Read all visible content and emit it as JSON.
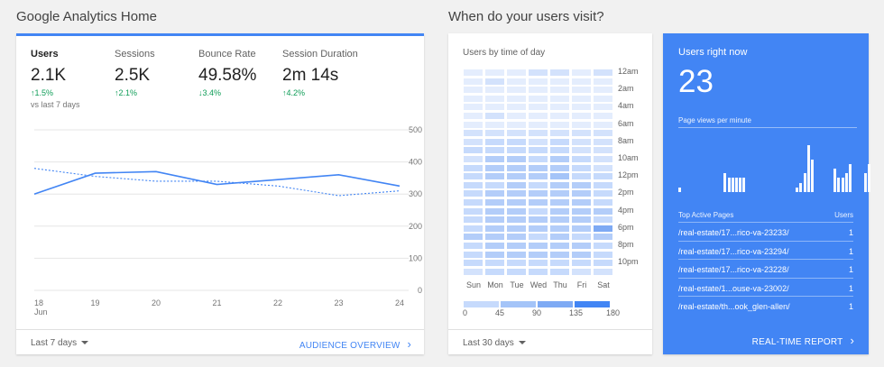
{
  "sections": {
    "overview_title": "Google Analytics Home",
    "visits_title": "When do your users visit?"
  },
  "overview": {
    "metrics": [
      {
        "label": "Users",
        "value": "2.1K",
        "change": "1.5%",
        "direction": "up",
        "sub": "vs last 7 days"
      },
      {
        "label": "Sessions",
        "value": "2.5K",
        "change": "2.1%",
        "direction": "up"
      },
      {
        "label": "Bounce Rate",
        "value": "49.58%",
        "change": "3.4%",
        "direction": "down"
      },
      {
        "label": "Session Duration",
        "value": "2m 14s",
        "change": "4.2%",
        "direction": "up"
      }
    ],
    "footer_range": "Last 7 days",
    "footer_link": "AUDIENCE OVERVIEW"
  },
  "chart_data": {
    "type": "line",
    "x": [
      "18",
      "19",
      "20",
      "21",
      "22",
      "23",
      "24"
    ],
    "x_sublabel": "Jun",
    "y_ticks": [
      "500",
      "400",
      "300",
      "200",
      "100",
      "0"
    ],
    "ylim": [
      0,
      500
    ],
    "series": [
      {
        "values": [
          300,
          365,
          370,
          330,
          345,
          360,
          325
        ],
        "style": "solid"
      },
      {
        "values": [
          380,
          355,
          340,
          340,
          325,
          295,
          310
        ],
        "style": "dashed"
      }
    ],
    "color": "#4285f4",
    "grid": true
  },
  "heatmap": {
    "title": "Users by time of day",
    "days": [
      "Sun",
      "Mon",
      "Tue",
      "Wed",
      "Thu",
      "Fri",
      "Sat"
    ],
    "hour_labels": [
      "12am",
      "2am",
      "4am",
      "6am",
      "8am",
      "10am",
      "12pm",
      "2pm",
      "4pm",
      "6pm",
      "8pm",
      "10pm"
    ],
    "legend_labels": [
      "0",
      "45",
      "90",
      "135",
      "180"
    ],
    "legend_colors": [
      "#c6dafc",
      "#a4c4f8",
      "#7eaaf4",
      "#4285f4"
    ],
    "cell_colors": [
      "#e4edfd",
      "#d3e2fc",
      "#c6dafc",
      "#b3cdf9",
      "#a4c4f8",
      "#7eaaf4"
    ],
    "grid_levels": [
      [
        0,
        0,
        0,
        1,
        1,
        0,
        1
      ],
      [
        0,
        1,
        0,
        0,
        0,
        0,
        0
      ],
      [
        0,
        0,
        0,
        0,
        0,
        0,
        0
      ],
      [
        0,
        0,
        0,
        0,
        0,
        0,
        0
      ],
      [
        0,
        0,
        0,
        0,
        0,
        0,
        0
      ],
      [
        0,
        1,
        0,
        0,
        0,
        0,
        0
      ],
      [
        0,
        0,
        0,
        0,
        0,
        0,
        0
      ],
      [
        1,
        1,
        1,
        1,
        1,
        1,
        1
      ],
      [
        1,
        2,
        2,
        1,
        2,
        1,
        1
      ],
      [
        2,
        2,
        2,
        2,
        2,
        1,
        1
      ],
      [
        1,
        3,
        3,
        2,
        3,
        2,
        1
      ],
      [
        2,
        3,
        3,
        3,
        3,
        2,
        1
      ],
      [
        2,
        3,
        3,
        3,
        4,
        2,
        2
      ],
      [
        2,
        2,
        3,
        2,
        3,
        3,
        2
      ],
      [
        2,
        3,
        3,
        3,
        3,
        3,
        2
      ],
      [
        2,
        3,
        3,
        3,
        3,
        3,
        2
      ],
      [
        2,
        3,
        3,
        2,
        3,
        3,
        3
      ],
      [
        2,
        3,
        3,
        3,
        3,
        3,
        2
      ],
      [
        2,
        3,
        3,
        3,
        3,
        3,
        5
      ],
      [
        3,
        3,
        3,
        2,
        3,
        2,
        3
      ],
      [
        2,
        3,
        3,
        3,
        3,
        3,
        2
      ],
      [
        2,
        3,
        3,
        3,
        3,
        3,
        2
      ],
      [
        2,
        2,
        2,
        2,
        2,
        2,
        2
      ],
      [
        1,
        2,
        2,
        2,
        2,
        1,
        1
      ]
    ],
    "footer_range": "Last 30 days"
  },
  "realtime": {
    "title": "Users right now",
    "value": "23",
    "pageviews_label": "Page views per minute",
    "bars": [
      1,
      0,
      0,
      0,
      0,
      0,
      0,
      0,
      0,
      0,
      0,
      0,
      4,
      3,
      3,
      3,
      3,
      3,
      0,
      0,
      0,
      0,
      0,
      0,
      0,
      0,
      0,
      0,
      0,
      0,
      0,
      1,
      2,
      4,
      10,
      7,
      0,
      0,
      0,
      0,
      0,
      5,
      3,
      3,
      4,
      6,
      0,
      0,
      0,
      4,
      6
    ],
    "bar_max": 10,
    "table_header": {
      "pages": "Top Active Pages",
      "users": "Users"
    },
    "rows": [
      {
        "page": "/real-estate/17...rico-va-23233/",
        "users": "1"
      },
      {
        "page": "/real-estate/17...rico-va-23294/",
        "users": "1"
      },
      {
        "page": "/real-estate/17...rico-va-23228/",
        "users": "1"
      },
      {
        "page": "/real-estate/1...ouse-va-23002/",
        "users": "1"
      },
      {
        "page": "/real-estate/th...ook_glen-allen/",
        "users": "1"
      }
    ],
    "footer_link": "REAL-TIME REPORT"
  }
}
